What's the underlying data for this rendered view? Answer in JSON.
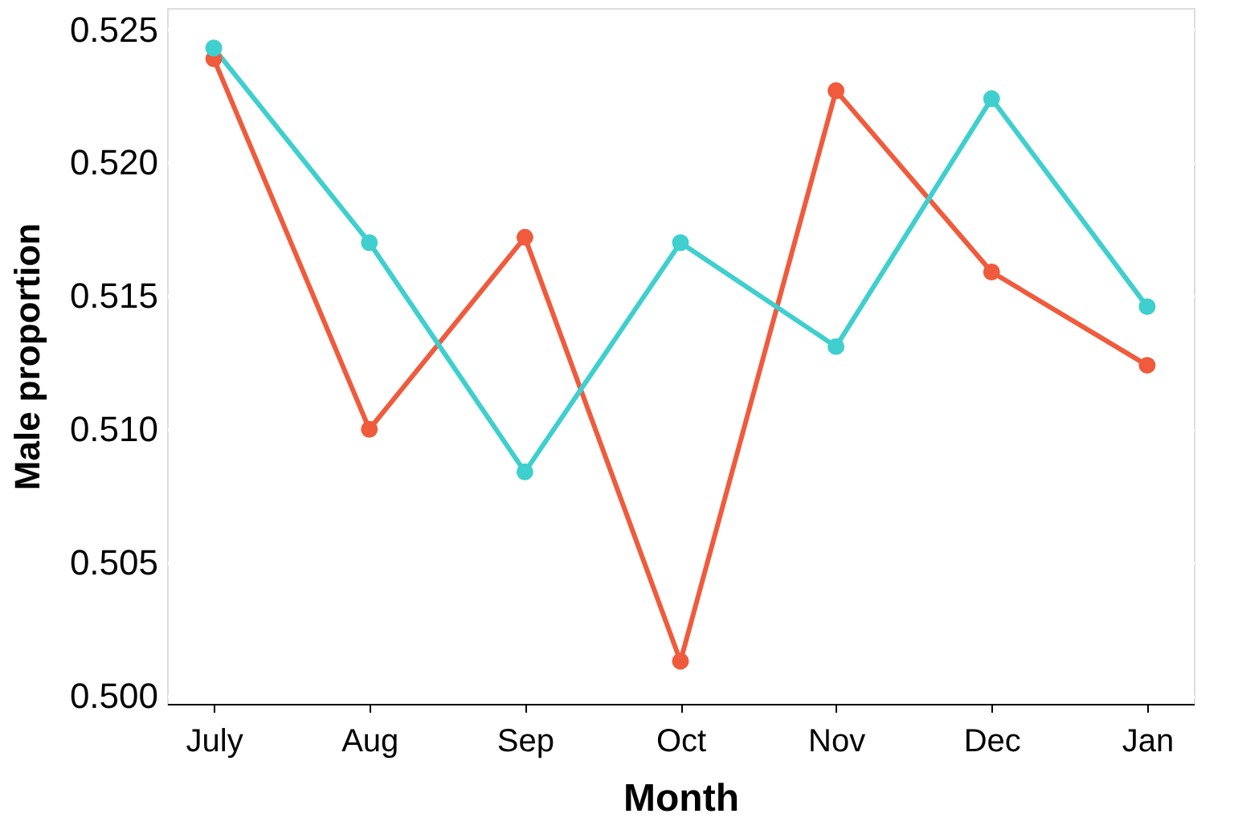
{
  "chart_data": {
    "type": "line",
    "xlabel": "Month",
    "ylabel": "Male proportion",
    "categories": [
      "July",
      "Aug",
      "Sep",
      "Oct",
      "Nov",
      "Dec",
      "Jan"
    ],
    "series": [
      {
        "color": "#ef5b3c",
        "values": [
          0.5239,
          0.51,
          0.5172,
          0.5013,
          0.5227,
          0.5159,
          0.5124
        ]
      },
      {
        "color": "#3fcfcf",
        "values": [
          0.5243,
          0.517,
          0.5084,
          0.517,
          0.5131,
          0.5224,
          0.5146
        ]
      }
    ],
    "ylim": [
      0.4997,
      0.5258
    ],
    "yticks": [
      {
        "value": 0.5,
        "label": "0.500"
      },
      0.505,
      {
        "value": 0.51,
        "label": "0.510"
      },
      0.515,
      {
        "value": 0.52,
        "label": "0.520"
      },
      0.525
    ],
    "grid": "y",
    "marker": "circle",
    "line_style": "solid",
    "legend": false
  }
}
